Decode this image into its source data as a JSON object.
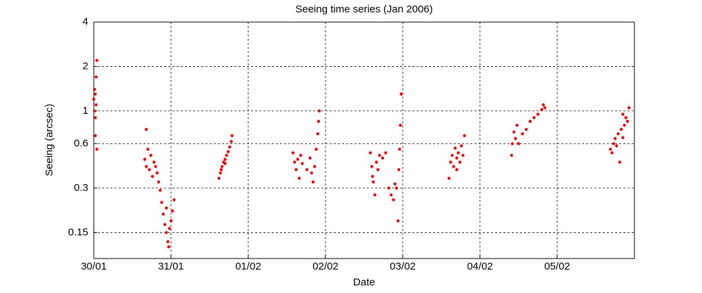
{
  "chart_data": {
    "type": "scatter",
    "title": "Seeing time series (Jan 2006)",
    "xlabel": "Date",
    "ylabel": "Seeing (arcsec)",
    "x": [
      0.0,
      0.01,
      0.01,
      0.02,
      0.02,
      0.03,
      0.03,
      0.04,
      0.04,
      0.02,
      0.66,
      0.68,
      0.68,
      0.7,
      0.72,
      0.74,
      0.76,
      0.78,
      0.8,
      0.82,
      0.84,
      0.86,
      0.88,
      0.9,
      0.92,
      0.94,
      0.96,
      0.98,
      1.0,
      1.02,
      1.04,
      0.94,
      0.97,
      1.62,
      1.64,
      1.66,
      1.68,
      1.7,
      1.72,
      1.74,
      1.76,
      1.78,
      1.79,
      1.65,
      1.7,
      2.58,
      2.6,
      2.62,
      2.64,
      2.66,
      2.68,
      2.7,
      2.76,
      2.8,
      2.82,
      2.84,
      2.86,
      2.88,
      2.9,
      2.91,
      2.92,
      3.58,
      3.6,
      3.61,
      3.62,
      3.64,
      3.66,
      3.68,
      3.7,
      3.74,
      3.78,
      3.82,
      3.85,
      3.88,
      3.9,
      3.92,
      3.94,
      3.95,
      3.96,
      3.97,
      3.98,
      4.6,
      4.62,
      4.64,
      4.66,
      4.68,
      4.7,
      4.72,
      4.74,
      4.76,
      4.78,
      4.8,
      4.7,
      5.41,
      5.42,
      5.44,
      5.46,
      5.48,
      5.5,
      5.55,
      5.6,
      5.65,
      5.7,
      5.75,
      5.8,
      5.82,
      5.84,
      6.69,
      6.71,
      6.73,
      6.75,
      6.77,
      6.79,
      6.81,
      6.83,
      6.85,
      6.87,
      6.89,
      6.91,
      6.93,
      6.85
    ],
    "series": [
      {
        "color": "#ff0000",
        "values": [
          1.2,
          1.4,
          1.0,
          0.9,
          1.3,
          1.1,
          1.7,
          2.2,
          0.55,
          0.68,
          0.47,
          0.42,
          0.75,
          0.55,
          0.4,
          0.5,
          0.36,
          0.45,
          0.42,
          0.38,
          0.33,
          0.29,
          0.24,
          0.2,
          0.17,
          0.15,
          0.13,
          0.16,
          0.18,
          0.21,
          0.25,
          0.22,
          0.12,
          0.35,
          0.38,
          0.42,
          0.45,
          0.47,
          0.5,
          0.53,
          0.57,
          0.62,
          0.68,
          0.4,
          0.44,
          0.52,
          0.45,
          0.4,
          0.47,
          0.35,
          0.5,
          0.44,
          0.4,
          0.48,
          0.38,
          0.33,
          0.42,
          0.55,
          0.7,
          0.85,
          1.0,
          0.52,
          0.42,
          0.36,
          0.33,
          0.27,
          0.45,
          0.4,
          0.5,
          0.48,
          0.52,
          0.3,
          0.27,
          0.25,
          0.32,
          0.3,
          0.18,
          0.4,
          0.55,
          0.8,
          1.3,
          0.35,
          0.45,
          0.5,
          0.42,
          0.56,
          0.48,
          0.52,
          0.45,
          0.58,
          0.5,
          0.68,
          0.4,
          0.5,
          0.6,
          0.72,
          0.65,
          0.8,
          0.6,
          0.7,
          0.75,
          0.85,
          0.9,
          0.95,
          1.02,
          1.1,
          1.05,
          0.55,
          0.52,
          0.6,
          0.65,
          0.58,
          0.7,
          0.45,
          0.75,
          0.66,
          0.8,
          0.9,
          0.85,
          1.05,
          0.95
        ]
      }
    ],
    "xlim": [
      0,
      7
    ],
    "xticks": [
      {
        "value": 0,
        "label": "30/01"
      },
      {
        "value": 1,
        "label": "31/01"
      },
      {
        "value": 2,
        "label": "01/02"
      },
      {
        "value": 3,
        "label": "02/02"
      },
      {
        "value": 4,
        "label": "03/02"
      },
      {
        "value": 5,
        "label": "04/02"
      },
      {
        "value": 6,
        "label": "05/02"
      }
    ],
    "ylim": [
      0.1,
      4
    ],
    "yticks": [
      0.15,
      0.3,
      0.6,
      1,
      2,
      4
    ],
    "ylog": true,
    "grid": true
  }
}
